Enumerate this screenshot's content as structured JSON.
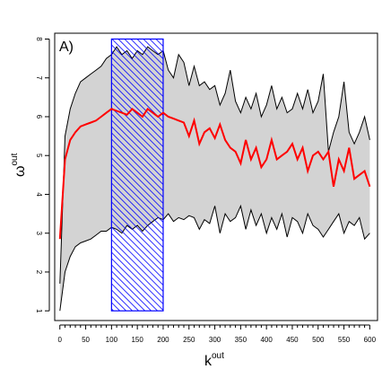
{
  "chart_data": {
    "type": "area",
    "panel_label": "A)",
    "xlabel": {
      "base": "k",
      "sup": "out"
    },
    "ylabel": {
      "base": "ω",
      "sup": "out"
    },
    "xlim": [
      -10,
      615
    ],
    "ylim": [
      0.75,
      8.15
    ],
    "xticks": [
      0,
      50,
      100,
      150,
      200,
      250,
      300,
      350,
      400,
      450,
      500,
      550,
      600
    ],
    "yticks": [
      1,
      2,
      3,
      4,
      5,
      6,
      7,
      8
    ],
    "grid": false,
    "highlight": {
      "x_from": 100,
      "x_to": 200,
      "y_from": 1,
      "y_to": 8,
      "color": "#0000ff"
    },
    "colors": {
      "band_fill": "#d3d3d3",
      "band_edge": "#000000",
      "mean_line": "#ff0000"
    },
    "x": [
      0,
      10,
      20,
      30,
      40,
      50,
      60,
      70,
      80,
      90,
      100,
      110,
      120,
      130,
      140,
      150,
      160,
      170,
      180,
      190,
      200,
      210,
      220,
      230,
      240,
      250,
      260,
      270,
      280,
      290,
      300,
      310,
      320,
      330,
      340,
      350,
      360,
      370,
      380,
      390,
      400,
      410,
      420,
      430,
      440,
      450,
      460,
      470,
      480,
      490,
      500,
      510,
      520,
      530,
      540,
      550,
      560,
      570,
      580,
      590,
      600
    ],
    "series": [
      {
        "role": "upper",
        "values": [
          1.7,
          5.5,
          6.2,
          6.6,
          6.9,
          7.0,
          7.1,
          7.2,
          7.3,
          7.5,
          7.6,
          7.8,
          7.6,
          7.7,
          7.5,
          7.7,
          7.6,
          7.8,
          7.7,
          7.6,
          7.7,
          7.2,
          7.0,
          7.6,
          7.4,
          6.8,
          7.3,
          6.8,
          6.9,
          6.7,
          6.8,
          6.3,
          6.6,
          7.2,
          6.4,
          6.1,
          6.5,
          6.2,
          6.6,
          6.0,
          6.3,
          6.8,
          6.2,
          6.5,
          6.1,
          6.2,
          6.6,
          6.2,
          6.7,
          6.1,
          6.4,
          7.1,
          5.1,
          5.6,
          6.0,
          6.9,
          5.6,
          5.3,
          5.6,
          6.0,
          5.4
        ]
      },
      {
        "role": "mean",
        "values": [
          2.85,
          4.9,
          5.4,
          5.6,
          5.75,
          5.8,
          5.85,
          5.9,
          6.0,
          6.1,
          6.2,
          6.15,
          6.1,
          6.05,
          6.2,
          6.1,
          6.0,
          6.2,
          6.1,
          6.0,
          6.1,
          6.0,
          5.95,
          5.9,
          5.85,
          5.5,
          5.9,
          5.3,
          5.6,
          5.7,
          5.45,
          5.8,
          5.4,
          5.2,
          5.1,
          4.8,
          5.4,
          4.9,
          5.2,
          4.7,
          4.9,
          5.4,
          4.9,
          5.0,
          5.1,
          5.3,
          4.9,
          5.2,
          4.6,
          5.0,
          5.1,
          4.9,
          5.1,
          4.2,
          4.9,
          4.6,
          5.2,
          4.4,
          4.5,
          4.6,
          4.2
        ]
      },
      {
        "role": "lower",
        "values": [
          1.0,
          2.0,
          2.4,
          2.65,
          2.75,
          2.8,
          2.85,
          2.95,
          3.05,
          3.05,
          3.15,
          3.1,
          3.0,
          3.2,
          3.1,
          3.2,
          3.05,
          3.2,
          3.3,
          3.4,
          3.35,
          3.5,
          3.3,
          3.4,
          3.35,
          3.45,
          3.4,
          3.1,
          3.35,
          3.25,
          3.7,
          3.0,
          3.5,
          3.3,
          3.4,
          3.7,
          3.1,
          3.6,
          3.2,
          3.5,
          3.0,
          3.4,
          3.1,
          3.5,
          2.9,
          3.4,
          3.3,
          3.0,
          3.5,
          3.2,
          3.1,
          2.9,
          3.1,
          3.3,
          3.5,
          3.0,
          3.3,
          3.2,
          3.4,
          2.85,
          3.0
        ]
      }
    ]
  }
}
